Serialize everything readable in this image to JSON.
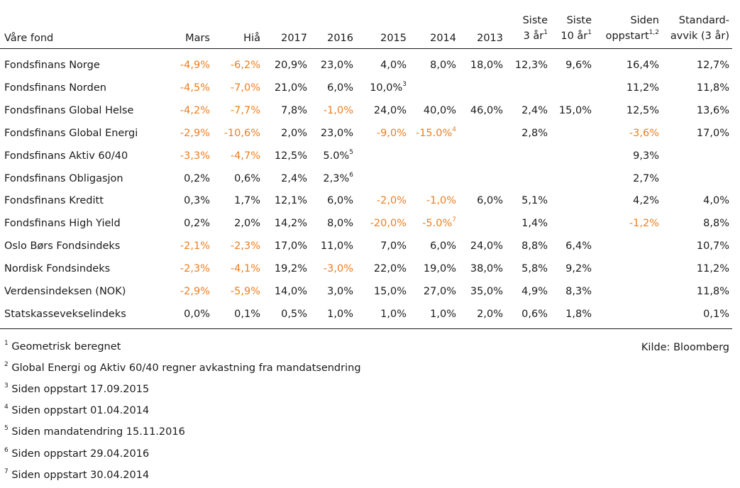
{
  "header": {
    "fund": "Våre fond",
    "mars": "Mars",
    "hia": "Hiå",
    "y2017": "2017",
    "y2016": "2016",
    "y2015": "2015",
    "y2014": "2014",
    "y2013": "2013",
    "siste3_l1": "Siste",
    "siste3_l2": "3 år",
    "siste3_sup": "1",
    "siste10_l1": "Siste",
    "siste10_l2": "10 år",
    "siste10_sup": "1",
    "siden_l1": "Siden",
    "siden_l2": "oppstart",
    "siden_sup": "1,2",
    "std_l1": "Standard-",
    "std_l2": "avvik (3 år)"
  },
  "rows": [
    {
      "name": "Fondsfinans Norge",
      "mars": "-4,9%",
      "hia": "-6,2%",
      "y2017": "20,9%",
      "y2016": "23,0%",
      "y2015": "4,0%",
      "y2014": "8,0%",
      "y2013": "18,0%",
      "s3": "12,3%",
      "s10": "9,6%",
      "siden": "16,4%",
      "std": "12,7%"
    },
    {
      "name": "Fondsfinans Norden",
      "mars": "-4,5%",
      "hia": "-7,0%",
      "y2017": "21,0%",
      "y2016": "6,0%",
      "y2015": "10,0%",
      "y2015_sup": "3",
      "y2014": "",
      "y2013": "",
      "s3": "",
      "s10": "",
      "siden": "11,2%",
      "std": "11,8%"
    },
    {
      "name": "Fondsfinans Global Helse",
      "mars": "-4,2%",
      "hia": "-7,7%",
      "y2017": "7,8%",
      "y2016": "-1,0%",
      "y2015": "24,0%",
      "y2014": "40,0%",
      "y2013": "46,0%",
      "s3": "2,4%",
      "s10": "15,0%",
      "siden": "12,5%",
      "std": "13,6%"
    },
    {
      "name": "Fondsfinans Global Energi",
      "mars": "-2,9%",
      "hia": "-10,6%",
      "y2017": "2,0%",
      "y2016": "23,0%",
      "y2015": "-9,0%",
      "y2014": "-15.0%",
      "y2014_sup": "4",
      "y2013": "",
      "s3": "2,8%",
      "s10": "",
      "siden": "-3,6%",
      "std": "17,0%"
    },
    {
      "name": "Fondsfinans Aktiv 60/40",
      "mars": "-3,3%",
      "hia": "-4,7%",
      "y2017": "12,5%",
      "y2016": "5.0%",
      "y2016_sup": "5",
      "y2015": "",
      "y2014": "",
      "y2013": "",
      "s3": "",
      "s10": "",
      "siden": "9,3%",
      "std": ""
    },
    {
      "name": "Fondsfinans Obligasjon",
      "mars": "0,2%",
      "hia": "0,6%",
      "y2017": "2,4%",
      "y2016": "2,3%",
      "y2016_sup": "6",
      "y2015": "",
      "y2014": "",
      "y2013": "",
      "s3": "",
      "s10": "",
      "siden": "2,7%",
      "std": ""
    },
    {
      "name": "Fondsfinans Kreditt",
      "mars": "0,3%",
      "hia": "1,7%",
      "y2017": "12,1%",
      "y2016": "6,0%",
      "y2015": "-2,0%",
      "y2014": "-1,0%",
      "y2013": "6,0%",
      "s3": "5,1%",
      "s10": "",
      "siden": "4,2%",
      "std": "4,0%"
    },
    {
      "name": "Fondsfinans High Yield",
      "mars": "0,2%",
      "hia": "2,0%",
      "y2017": "14,2%",
      "y2016": "8,0%",
      "y2015": "-20,0%",
      "y2014": "-5.0%",
      "y2014_sup": "7",
      "y2013": "",
      "s3": "1,4%",
      "s10": "",
      "siden": "-1,2%",
      "std": "8,8%"
    },
    {
      "name": "Oslo Børs Fondsindeks",
      "mars": "-2,1%",
      "hia": "-2,3%",
      "y2017": "17,0%",
      "y2016": "11,0%",
      "y2015": "7,0%",
      "y2014": "6,0%",
      "y2013": "24,0%",
      "s3": "8,8%",
      "s10": "6,4%",
      "siden": "",
      "std": "10,7%"
    },
    {
      "name": "Nordisk Fondsindeks",
      "mars": "-2,3%",
      "hia": "-4,1%",
      "y2017": "19,2%",
      "y2016": "-3,0%",
      "y2015": "22,0%",
      "y2014": "19,0%",
      "y2013": "38,0%",
      "s3": "5,8%",
      "s10": "9,2%",
      "siden": "",
      "std": "11,2%"
    },
    {
      "name": "Verdensindeksen (NOK)",
      "mars": "-2,9%",
      "hia": "-5,9%",
      "y2017": "14,0%",
      "y2016": "3,0%",
      "y2015": "15,0%",
      "y2014": "27,0%",
      "y2013": "35,0%",
      "s3": "4,9%",
      "s10": "8,3%",
      "siden": "",
      "std": "11,8%"
    },
    {
      "name": "Statskassevekselindeks",
      "mars": "0,0%",
      "hia": "0,1%",
      "y2017": "0,5%",
      "y2016": "1,0%",
      "y2015": "1,0%",
      "y2014": "1,0%",
      "y2013": "2,0%",
      "s3": "0,6%",
      "s10": "1,8%",
      "siden": "",
      "std": "0,1%"
    }
  ],
  "footnotes": [
    {
      "num": "1",
      "text": "Geometrisk beregnet"
    },
    {
      "num": "2",
      "text": "Global Energi og Aktiv 60/40 regner avkastning fra mandatsendring"
    },
    {
      "num": "3",
      "text": "Siden oppstart 17.09.2015"
    },
    {
      "num": "4",
      "text": "Siden oppstart 01.04.2014"
    },
    {
      "num": "5",
      "text": "Siden mandatendring 15.11.2016"
    },
    {
      "num": "6",
      "text": "Siden oppstart 29.04.2016"
    },
    {
      "num": "7",
      "text": "Siden oppstart 30.04.2014"
    }
  ],
  "source": "Kilde: Bloomberg",
  "colors": {
    "negative": "#ee7d1f",
    "text": "#1a1a1a"
  }
}
